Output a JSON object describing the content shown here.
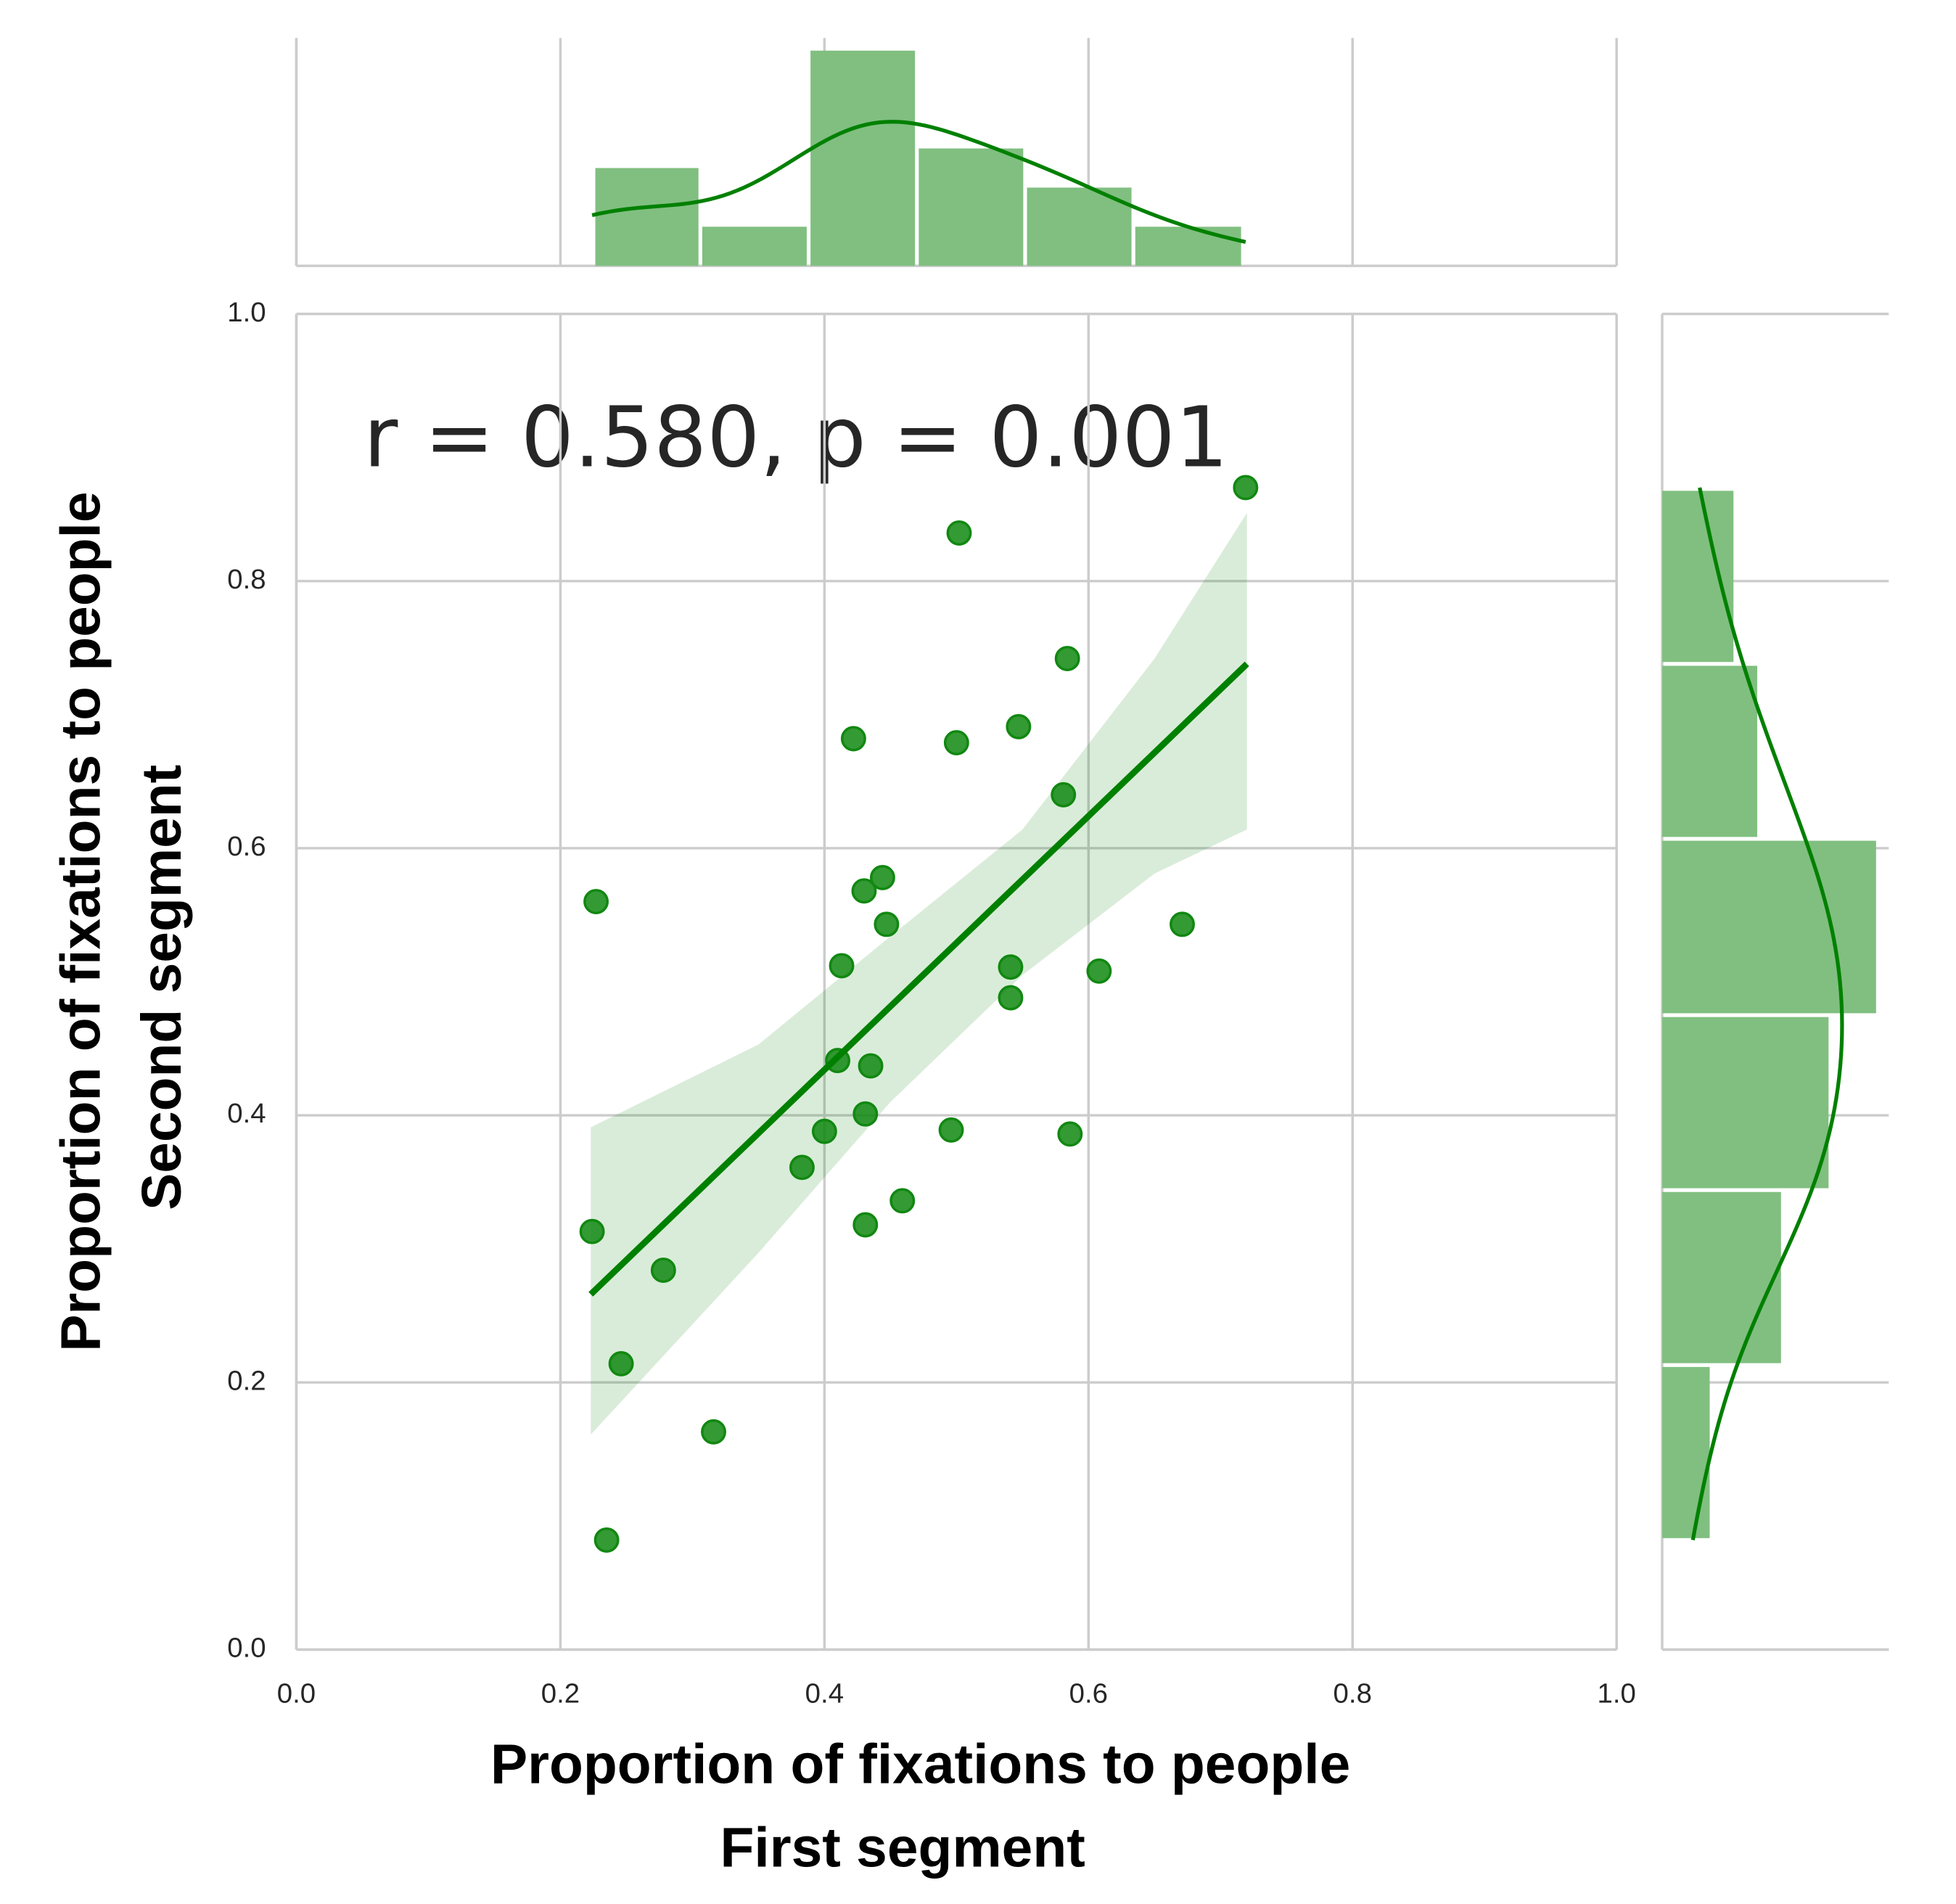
{
  "chart_data": {
    "type": "scatter",
    "annotation": "r = 0.580, p = 0.001",
    "xlabel": [
      "Proportion of fixations to people",
      "First segment"
    ],
    "ylabel": [
      "Proportion of fixations to people",
      "Second segment"
    ],
    "color": "#118811",
    "x": [
      0.719,
      0.502,
      0.584,
      0.422,
      0.5,
      0.547,
      0.581,
      0.227,
      0.444,
      0.43,
      0.447,
      0.671,
      0.413,
      0.541,
      0.608,
      0.541,
      0.41,
      0.435,
      0.431,
      0.4,
      0.496,
      0.586,
      0.383,
      0.459,
      0.431,
      0.224,
      0.278,
      0.246,
      0.316,
      0.235
    ],
    "y": [
      0.87,
      0.836,
      0.742,
      0.682,
      0.679,
      0.691,
      0.64,
      0.56,
      0.578,
      0.568,
      0.543,
      0.543,
      0.512,
      0.511,
      0.508,
      0.488,
      0.441,
      0.437,
      0.401,
      0.388,
      0.389,
      0.386,
      0.361,
      0.336,
      0.318,
      0.313,
      0.284,
      0.214,
      0.163,
      0.082
    ],
    "regression": {
      "x": [
        0.223,
        0.72
      ],
      "y": [
        0.266,
        0.738
      ],
      "color": "#008000"
    },
    "ci": {
      "x": [
        0.223,
        0.35,
        0.45,
        0.55,
        0.65,
        0.72
      ],
      "lower": [
        0.161,
        0.297,
        0.41,
        0.505,
        0.581,
        0.614
      ],
      "upper": [
        0.391,
        0.453,
        0.534,
        0.614,
        0.742,
        0.851
      ]
    },
    "xlim": [
      0,
      1
    ],
    "ylim": [
      0,
      1
    ],
    "xticks": [
      {
        "value": 0,
        "label": "0.0"
      },
      0.2,
      0.4,
      0.6,
      0.8,
      {
        "value": 1,
        "label": "1.0"
      }
    ],
    "yticks": [
      {
        "value": 0,
        "label": "0.0"
      },
      0.2,
      0.4,
      0.6,
      0.8,
      {
        "value": 1,
        "label": "1.0"
      }
    ],
    "grid": true,
    "marginal_x": {
      "type": "histogram",
      "bins": [
        0.225,
        0.306,
        0.388,
        0.47,
        0.552,
        0.634,
        0.717
      ],
      "counts": [
        5,
        2,
        11,
        6,
        4,
        2
      ],
      "color": "#80bf80",
      "kde": true
    },
    "marginal_y": {
      "type": "histogram",
      "bins": [
        0.082,
        0.213,
        0.344,
        0.475,
        0.607,
        0.738,
        0.869
      ],
      "counts": [
        2,
        5,
        7,
        9,
        4,
        3
      ],
      "color": "#80bf80",
      "kde": true
    }
  }
}
